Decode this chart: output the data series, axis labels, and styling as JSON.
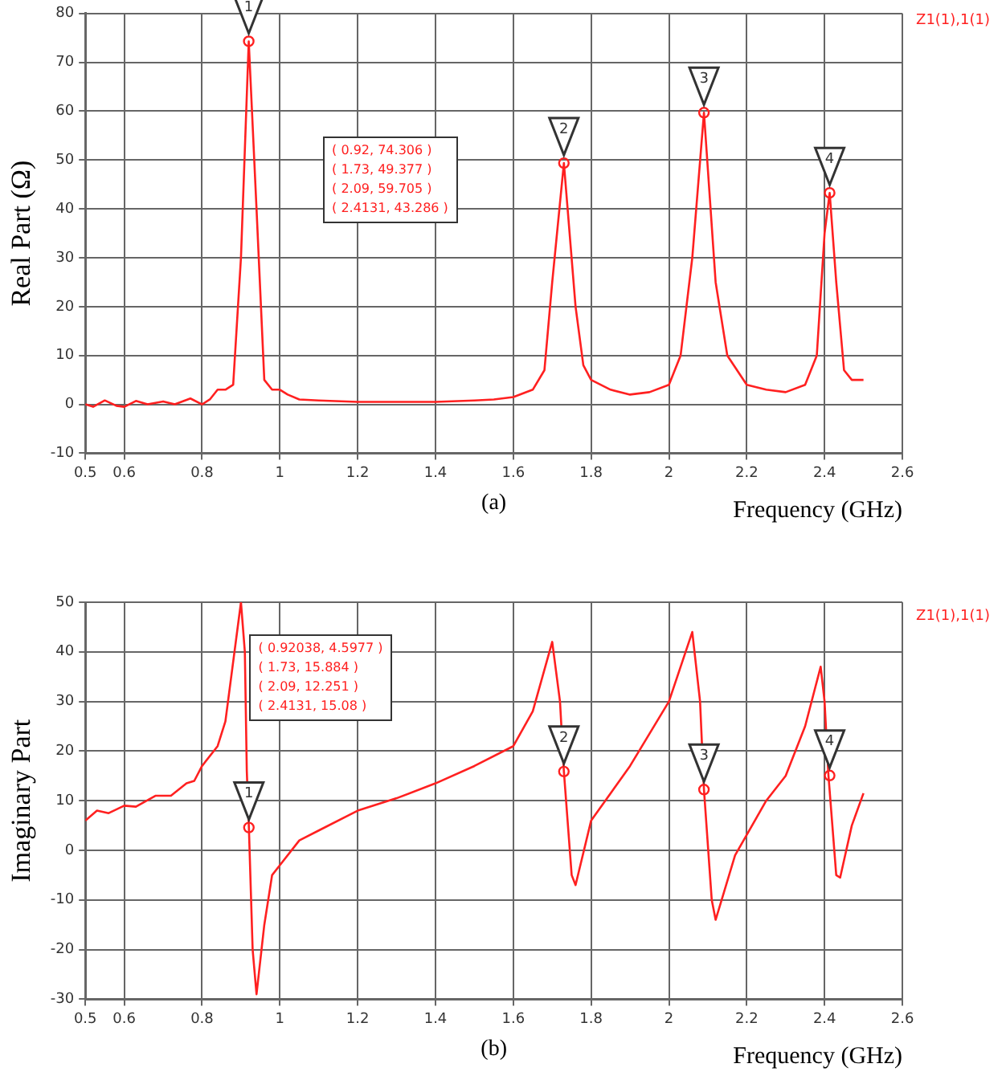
{
  "chart_data": [
    {
      "type": "line",
      "xlabel": "Frequency (GHz)",
      "ylabel": "Real Part (Ω)",
      "legend": "top right",
      "grid": true,
      "marker": "none",
      "line_style": "solid",
      "xlim": [
        0.5,
        2.6
      ],
      "xticks": [
        0.5,
        0.6,
        0.8,
        1,
        1.2,
        1.4,
        1.6,
        1.8,
        2,
        2.2,
        2.4,
        2.6
      ],
      "ylim": [
        -10,
        80
      ],
      "yticks": [
        -10,
        0,
        10,
        20,
        30,
        40,
        50,
        60,
        70,
        80
      ],
      "series": [
        {
          "name": "Z1(1),1(1)",
          "color": "#ff2020",
          "x": [
            0.5,
            0.52,
            0.55,
            0.58,
            0.6,
            0.63,
            0.66,
            0.7,
            0.73,
            0.77,
            0.8,
            0.82,
            0.84,
            0.86,
            0.88,
            0.9,
            0.92,
            0.94,
            0.96,
            0.98,
            1.0,
            1.02,
            1.05,
            1.1,
            1.2,
            1.3,
            1.4,
            1.5,
            1.55,
            1.6,
            1.65,
            1.68,
            1.7,
            1.73,
            1.76,
            1.78,
            1.8,
            1.85,
            1.9,
            1.95,
            2.0,
            2.03,
            2.06,
            2.09,
            2.12,
            2.15,
            2.2,
            2.25,
            2.3,
            2.35,
            2.38,
            2.4,
            2.4131,
            2.43,
            2.45,
            2.47,
            2.5
          ],
          "values": [
            0,
            -0.5,
            0.8,
            -0.3,
            -0.5,
            0.7,
            0,
            0.6,
            0,
            1.2,
            0,
            1,
            3,
            3,
            4,
            30,
            74.306,
            40,
            5,
            3,
            3,
            2,
            1,
            0.8,
            0.5,
            0.5,
            0.5,
            0.8,
            1,
            1.5,
            3,
            7,
            25,
            49.377,
            20,
            8,
            5,
            3,
            2,
            2.5,
            4,
            10,
            30,
            59.705,
            25,
            10,
            4,
            3,
            2.5,
            4,
            10,
            35,
            43.286,
            25,
            7,
            5,
            5
          ]
        }
      ],
      "annotations": [
        {
          "text": "1",
          "x": 0.92,
          "y": 74.306
        },
        {
          "text": "2",
          "x": 1.73,
          "y": 49.377
        },
        {
          "text": "3",
          "x": 2.09,
          "y": 59.705
        },
        {
          "text": "4",
          "x": 2.4131,
          "y": 43.286
        },
        "( 0.92, 74.306 )",
        "( 1.73, 49.377 )",
        "( 2.09, 59.705 )",
        "( 2.4131, 43.286 )",
        "(a)"
      ]
    },
    {
      "type": "line",
      "xlabel": "Frequency (GHz)",
      "ylabel": "Imaginary Part",
      "legend": "top right",
      "grid": true,
      "marker": "none",
      "line_style": "solid",
      "xlim": [
        0.5,
        2.6
      ],
      "xticks": [
        0.5,
        0.6,
        0.8,
        1,
        1.2,
        1.4,
        1.6,
        1.8,
        2,
        2.2,
        2.4,
        2.6
      ],
      "ylim": [
        -30,
        50
      ],
      "yticks": [
        -30,
        -20,
        -10,
        0,
        10,
        20,
        30,
        40,
        50
      ],
      "series": [
        {
          "name": "Z1(1),1(1)",
          "color": "#ff2020",
          "x": [
            0.5,
            0.53,
            0.56,
            0.6,
            0.63,
            0.68,
            0.72,
            0.76,
            0.78,
            0.8,
            0.84,
            0.86,
            0.88,
            0.9,
            0.91,
            0.915,
            0.92038,
            0.93,
            0.94,
            0.96,
            0.98,
            1.0,
            1.05,
            1.1,
            1.2,
            1.3,
            1.4,
            1.5,
            1.6,
            1.65,
            1.7,
            1.72,
            1.73,
            1.75,
            1.76,
            1.8,
            1.9,
            2.0,
            2.06,
            2.08,
            2.09,
            2.11,
            2.12,
            2.17,
            2.25,
            2.3,
            2.35,
            2.39,
            2.4,
            2.41,
            2.43,
            2.44,
            2.47,
            2.5
          ],
          "values": [
            6,
            8,
            7.5,
            9,
            8.8,
            11,
            11,
            13.5,
            14,
            17,
            21,
            26,
            38,
            50,
            40,
            16,
            4.5977,
            -20,
            -29,
            -15,
            -5,
            -3,
            2,
            4,
            8,
            10.5,
            13.5,
            17,
            21,
            28,
            42,
            30,
            15.884,
            -5,
            -7,
            6,
            17,
            30,
            44,
            30,
            12.251,
            -10,
            -14,
            -1,
            10,
            15,
            25,
            37,
            30,
            15.08,
            -5,
            -5.5,
            5,
            11.5
          ]
        }
      ],
      "annotations": [
        {
          "text": "1",
          "x": 0.92038,
          "y": 4.5977
        },
        {
          "text": "2",
          "x": 1.73,
          "y": 15.884
        },
        {
          "text": "3",
          "x": 2.09,
          "y": 12.251
        },
        {
          "text": "4",
          "x": 2.4131,
          "y": 15.08
        },
        "( 0.92038, 4.5977 )",
        "( 1.73, 15.884 )",
        "( 2.09, 12.251 )",
        "( 2.4131, 15.08 )",
        "(b)"
      ]
    }
  ]
}
